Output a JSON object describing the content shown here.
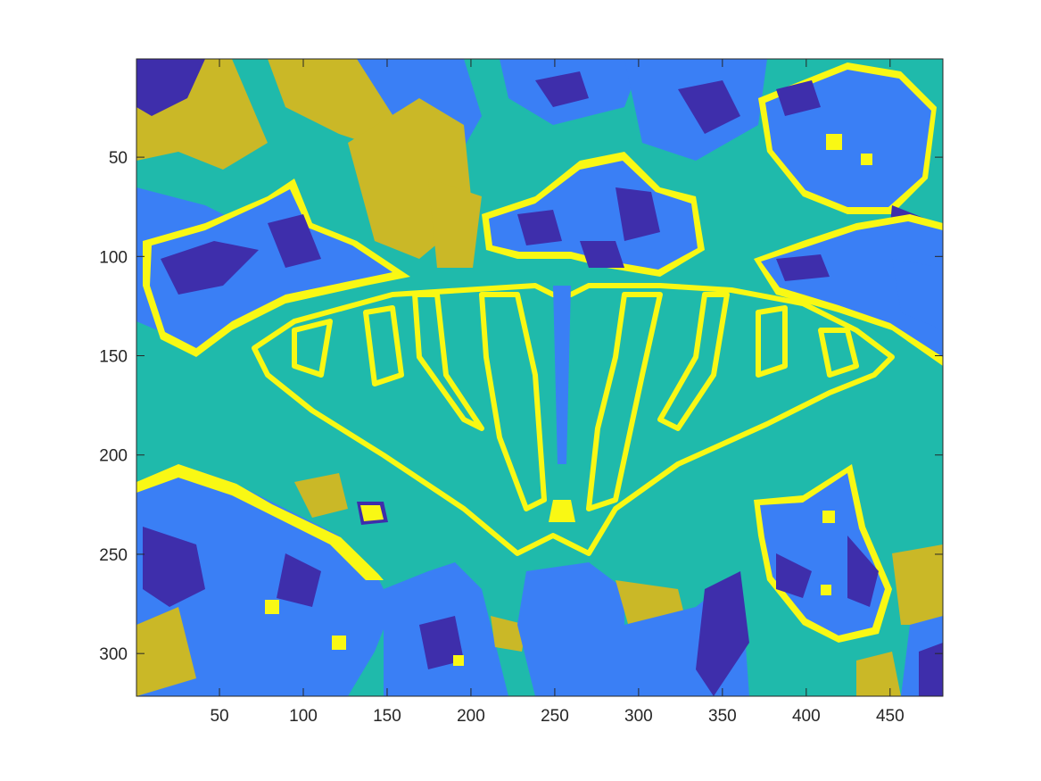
{
  "chart_data": {
    "type": "heatmap",
    "title": "",
    "xlabel": "",
    "ylabel": "",
    "xlim": [
      0.5,
      481.5
    ],
    "ylim": [
      0.5,
      321.5
    ],
    "y_reversed": true,
    "grid": false,
    "legend": "none",
    "colormap": "parula",
    "num_clusters": 5,
    "cluster_colors": [
      "#3E2EAB",
      "#3A7FF5",
      "#1FBAAB",
      "#CAB827",
      "#F9F814"
    ],
    "x_ticks": [
      50,
      100,
      150,
      200,
      250,
      300,
      350,
      400,
      450
    ],
    "x_tick_labels": [
      "50",
      "100",
      "150",
      "200",
      "250",
      "300",
      "350",
      "400",
      "450"
    ],
    "y_ticks": [
      50,
      100,
      150,
      200,
      250,
      300
    ],
    "y_tick_labels": [
      "50",
      "100",
      "150",
      "200",
      "250",
      "300"
    ],
    "frame_color": "#262626",
    "background_color": "#1FBAAB"
  }
}
